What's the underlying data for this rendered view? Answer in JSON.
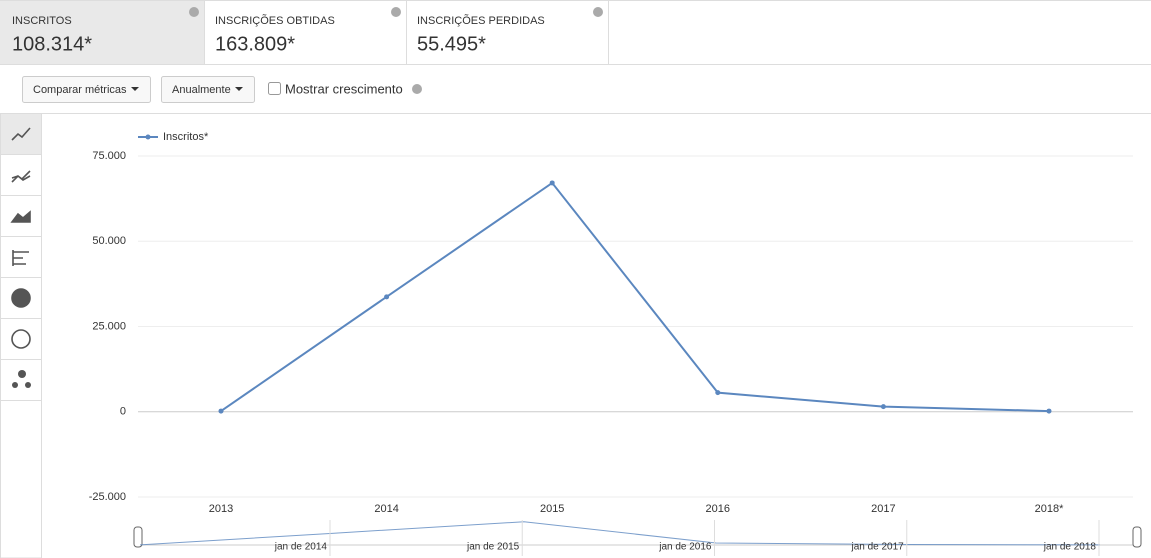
{
  "metrics": [
    {
      "label": "INSCRITOS",
      "value": "108.314*"
    },
    {
      "label": "INSCRIÇÕES OBTIDAS",
      "value": "163.809*"
    },
    {
      "label": "INSCRIÇÕES PERDIDAS",
      "value": "55.495*"
    }
  ],
  "controls": {
    "compare": "Comparar métricas",
    "period": "Anualmente",
    "growth": "Mostrar crescimento"
  },
  "chart_data": {
    "type": "line",
    "categories": [
      "2013",
      "2014",
      "2015",
      "2016",
      "2017",
      "2018*"
    ],
    "series": [
      {
        "name": "Inscritos*",
        "color": "#5b87bf",
        "values": [
          200,
          33700,
          67100,
          5600,
          1500,
          200
        ]
      }
    ],
    "ylim": [
      -25000,
      75000
    ],
    "yticks": [
      {
        "value": -25000,
        "label": "-25.000"
      },
      0,
      {
        "value": 25000,
        "label": "25.000"
      },
      {
        "value": 50000,
        "label": "50.000"
      },
      {
        "value": 75000,
        "label": "75.000"
      }
    ],
    "grid": true
  },
  "timeline": {
    "labels": [
      "jan de 2014",
      "jan de 2015",
      "jan de 2016",
      "jan de 2017",
      "jan de 2018"
    ]
  }
}
